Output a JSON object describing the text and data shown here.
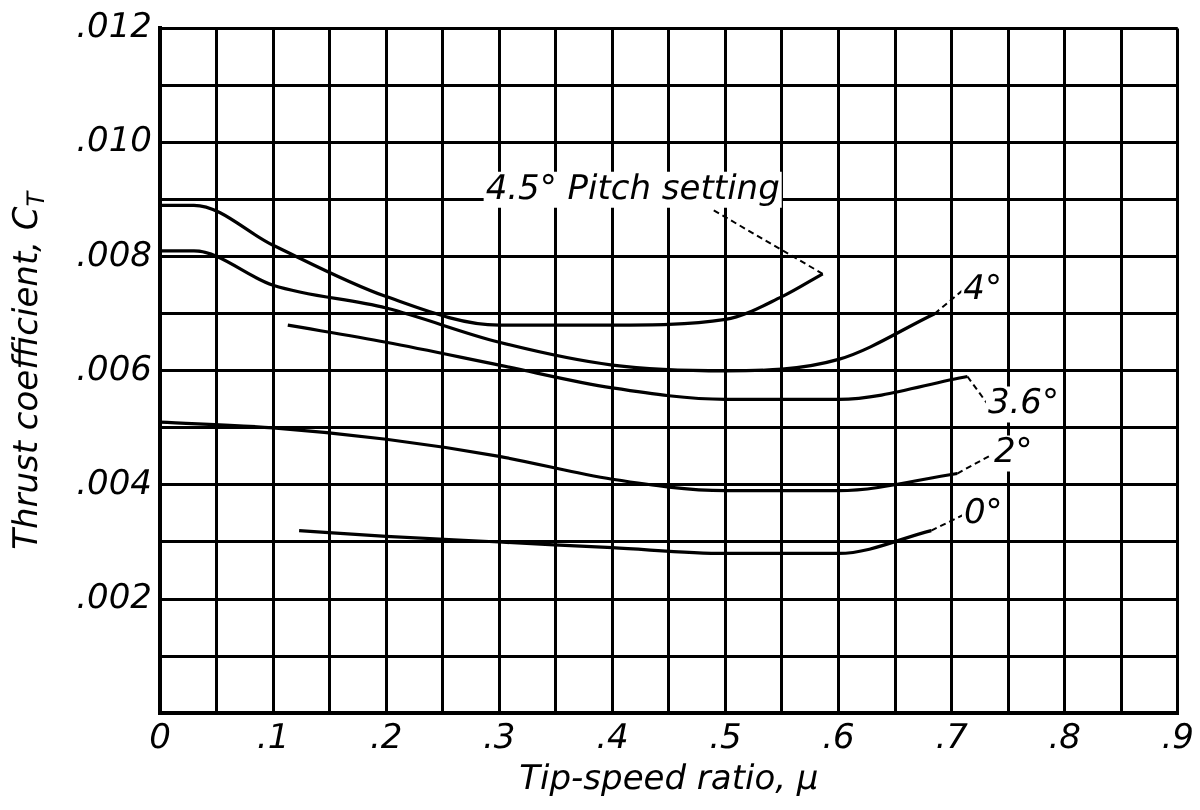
{
  "chart_data": {
    "type": "line",
    "xlabel": "Tip-speed ratio, μ",
    "ylabel": "Thrust coefficient, C$_{T}$",
    "xlim": [
      0,
      0.9
    ],
    "ylim": [
      0,
      0.012
    ],
    "xticks": [
      {
        "value": 0,
        "label": "0"
      },
      {
        "value": 0.05,
        "label": null
      },
      {
        "value": 0.1,
        "label": ".1"
      },
      {
        "value": 0.15,
        "label": null
      },
      {
        "value": 0.2,
        "label": ".2"
      },
      {
        "value": 0.25,
        "label": null
      },
      {
        "value": 0.3,
        "label": ".3"
      },
      {
        "value": 0.35,
        "label": null
      },
      {
        "value": 0.4,
        "label": ".4"
      },
      {
        "value": 0.45,
        "label": null
      },
      {
        "value": 0.5,
        "label": ".5"
      },
      {
        "value": 0.55,
        "label": null
      },
      {
        "value": 0.6,
        "label": ".6"
      },
      {
        "value": 0.65,
        "label": null
      },
      {
        "value": 0.7,
        "label": ".7"
      },
      {
        "value": 0.75,
        "label": null
      },
      {
        "value": 0.8,
        "label": ".8"
      },
      {
        "value": 0.85,
        "label": null
      },
      {
        "value": 0.9,
        "label": ".9"
      }
    ],
    "yticks": [
      {
        "value": 0,
        "label": null
      },
      {
        "value": 0.001,
        "label": null
      },
      {
        "value": 0.002,
        "label": ".002"
      },
      {
        "value": 0.003,
        "label": null
      },
      {
        "value": 0.004,
        "label": ".004"
      },
      {
        "value": 0.005,
        "label": null
      },
      {
        "value": 0.006,
        "label": ".006"
      },
      {
        "value": 0.007,
        "label": null
      },
      {
        "value": 0.008,
        "label": ".008"
      },
      {
        "value": 0.009,
        "label": null
      },
      {
        "value": 0.01,
        "label": ".010"
      },
      {
        "value": 0.011,
        "label": null
      },
      {
        "value": 0.012,
        "label": ".012"
      }
    ],
    "grid": true,
    "legend": false,
    "marker": "none",
    "line_style": "solid",
    "series": [
      {
        "color": "#000000",
        "x": [
          0,
          0.03,
          0.1,
          0.2,
          0.3,
          0.4,
          0.5,
          0.55,
          0.586
        ],
        "values": [
          0.0089,
          0.0089,
          0.0082,
          0.0073,
          0.0068,
          0.0068,
          0.0069,
          0.0073,
          0.0077
        ]
      },
      {
        "color": "#000000",
        "x": [
          0,
          0.03,
          0.1,
          0.2,
          0.3,
          0.4,
          0.5,
          0.6,
          0.685
        ],
        "values": [
          0.0081,
          0.0081,
          0.0075,
          0.0071,
          0.0065,
          0.0061,
          0.006,
          0.0062,
          0.007
        ]
      },
      {
        "color": "#000000",
        "x": [
          0.113,
          0.2,
          0.3,
          0.4,
          0.5,
          0.6,
          0.714
        ],
        "values": [
          0.0068,
          0.0065,
          0.0061,
          0.0057,
          0.0055,
          0.0055,
          0.0059
        ]
      },
      {
        "color": "#000000",
        "x": [
          0,
          0.1,
          0.2,
          0.3,
          0.4,
          0.5,
          0.6,
          0.705
        ],
        "values": [
          0.0051,
          0.005,
          0.0048,
          0.0045,
          0.0041,
          0.0039,
          0.0039,
          0.0042
        ]
      },
      {
        "color": "#000000",
        "x": [
          0.123,
          0.2,
          0.3,
          0.4,
          0.5,
          0.6,
          0.682
        ],
        "values": [
          0.0032,
          0.0031,
          0.003,
          0.0029,
          0.0028,
          0.0028,
          0.0032
        ]
      }
    ],
    "annotations": [
      {
        "text": "4.5° Pitch setting",
        "x": 0.586,
        "y": 0.0077
      },
      {
        "text": "4°",
        "x": 0.685,
        "y": 0.007
      },
      {
        "text": "3.6°",
        "x": 0.714,
        "y": 0.0059
      },
      {
        "text": "2°",
        "x": 0.705,
        "y": 0.0042
      },
      {
        "text": "0°",
        "x": 0.682,
        "y": 0.0032
      }
    ]
  }
}
